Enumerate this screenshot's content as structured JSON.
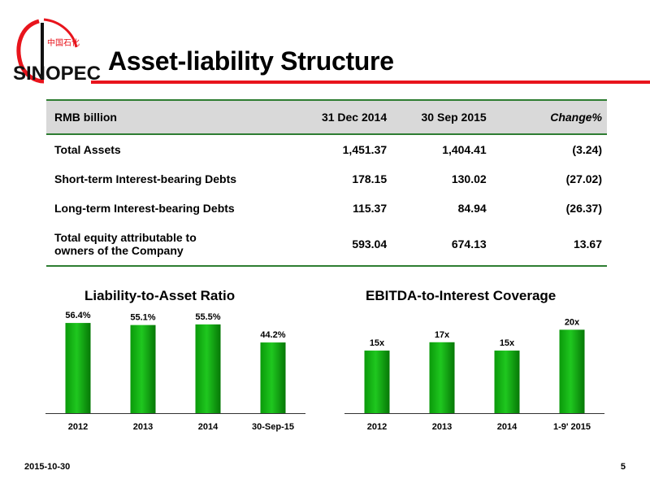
{
  "logo": {
    "chinese_text": "中国石化",
    "brand_text": "SINOPEC",
    "colors": {
      "red": "#e8141c",
      "black": "#111111"
    }
  },
  "slide": {
    "title": "Asset-liability Structure",
    "accent_color": "#e8141c",
    "date": "2015-10-30",
    "page_number": "5"
  },
  "table": {
    "headers": [
      "RMB billion",
      "31 Dec 2014",
      "30 Sep 2015",
      "Change%"
    ],
    "rows": [
      {
        "label": [
          "Total Assets"
        ],
        "values": [
          "1,451.37",
          "1,404.41",
          "(3.24)"
        ]
      },
      {
        "label": [
          "Short-term Interest-bearing Debts"
        ],
        "values": [
          "178.15",
          "130.02",
          "(27.02)"
        ]
      },
      {
        "label": [
          "Long-term Interest-bearing Debts"
        ],
        "values": [
          "115.37",
          "84.94",
          "(26.37)"
        ]
      },
      {
        "label": [
          "Total equity attributable to",
          "owners of the Company"
        ],
        "values": [
          "593.04",
          "674.13",
          "13.67"
        ]
      }
    ]
  },
  "chart_data": [
    {
      "type": "bar",
      "title": "Liability-to-Asset Ratio",
      "categories": [
        "2012",
        "2013",
        "2014",
        "30-Sep-15"
      ],
      "values": [
        56.4,
        55.1,
        55.5,
        44.2
      ],
      "data_labels": [
        "56.4%",
        "55.1%",
        "55.5%",
        "44.2%"
      ],
      "ylim": [
        0,
        60
      ],
      "bar_color": "#1fc71f",
      "grid": false,
      "legend": "none"
    },
    {
      "type": "bar",
      "title": "EBITDA-to-Interest Coverage",
      "categories": [
        "2012",
        "2013",
        "2014",
        "1-9' 2015"
      ],
      "values": [
        15,
        17,
        15,
        20
      ],
      "data_labels": [
        "15x",
        "17x",
        "15x",
        "20x"
      ],
      "ylim": [
        0,
        23
      ],
      "bar_color": "#1fc71f",
      "grid": false,
      "legend": "none"
    }
  ]
}
